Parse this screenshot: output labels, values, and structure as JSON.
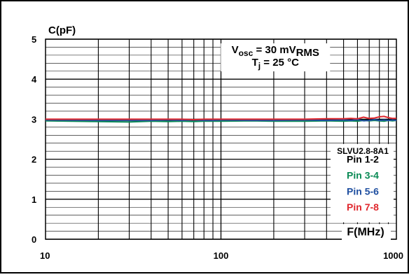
{
  "chart_data": {
    "type": "line",
    "ylabel": "C(pF)",
    "xlabel": "F(MHz)",
    "xscale": "log",
    "xlim": [
      10,
      1000
    ],
    "ylim": [
      0,
      5
    ],
    "x_ticks": [
      "10",
      "100",
      "1000"
    ],
    "y_ticks": [
      "0",
      "1",
      "2",
      "3",
      "4",
      "5"
    ],
    "grid": true,
    "conditions": {
      "line1": {
        "main": "V",
        "sub": "osc",
        "mid": " = 30 mV",
        "sub2": "RMS"
      },
      "line2": {
        "main": "T",
        "sub": "j",
        "mid": " = 25 °C"
      }
    },
    "legend_title": "SLVU2.8-8A1",
    "legend_placement": "bottom-right",
    "x": [
      10,
      20,
      30,
      40,
      50,
      60,
      70,
      80,
      90,
      100,
      150,
      200,
      300,
      400,
      500,
      550,
      600,
      650,
      700,
      750,
      800,
      850,
      900,
      950,
      1000
    ],
    "series": [
      {
        "name": "Pin 1-2",
        "color": "#000000",
        "values": [
          2.97,
          2.97,
          2.97,
          2.96,
          2.97,
          2.97,
          2.96,
          2.97,
          2.97,
          2.97,
          2.97,
          2.97,
          2.96,
          2.97,
          2.97,
          2.98,
          2.97,
          2.99,
          2.97,
          2.98,
          2.99,
          2.97,
          2.98,
          2.97,
          2.98
        ]
      },
      {
        "name": "Pin 3-4",
        "color": "#0a8a55",
        "values": [
          2.96,
          2.94,
          2.93,
          2.95,
          2.94,
          2.95,
          2.94,
          2.95,
          2.95,
          2.95,
          2.96,
          2.95,
          2.95,
          2.96,
          2.95,
          2.96,
          2.95,
          2.97,
          2.96,
          2.97,
          2.96,
          2.95,
          2.97,
          2.96,
          2.97
        ]
      },
      {
        "name": "Pin 5-6",
        "color": "#1f4fa0",
        "values": [
          2.98,
          2.97,
          2.97,
          2.97,
          2.98,
          2.97,
          2.98,
          2.97,
          2.97,
          2.98,
          2.97,
          2.97,
          2.98,
          2.97,
          2.98,
          2.97,
          2.99,
          2.96,
          2.97,
          2.99,
          2.97,
          2.98,
          2.97,
          2.98,
          2.97
        ]
      },
      {
        "name": "Pin 7-8",
        "color": "#e0282e",
        "values": [
          3.0,
          3.0,
          3.0,
          3.0,
          3.0,
          3.0,
          2.99,
          3.0,
          3.0,
          3.0,
          3.0,
          3.0,
          3.0,
          3.01,
          3.01,
          3.02,
          3.01,
          3.05,
          3.02,
          3.03,
          3.06,
          3.07,
          3.04,
          3.02,
          3.02
        ]
      }
    ]
  }
}
